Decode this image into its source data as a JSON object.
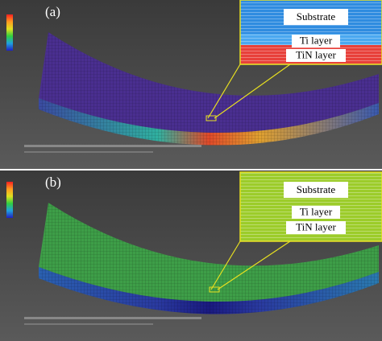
{
  "panels": [
    {
      "label": "(a)",
      "layers": [
        "Substrate",
        "Ti layer",
        "TiN layer"
      ]
    },
    {
      "label": "(b)",
      "layers": [
        "Substrate",
        "Ti layer",
        "TiN layer"
      ]
    }
  ]
}
